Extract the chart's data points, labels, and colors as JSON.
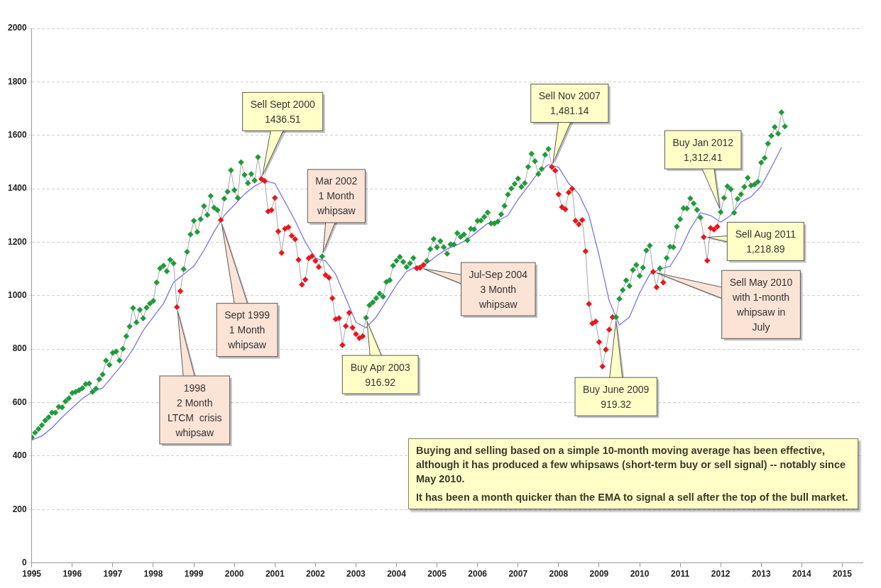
{
  "chart_data": {
    "type": "line",
    "xlim": [
      "1995",
      "2015-07"
    ],
    "xticks": [
      "1995",
      "1996",
      "1997",
      "1998",
      "1999",
      "2000",
      "2001",
      "2002",
      "2003",
      "2004",
      "2005",
      "2006",
      "2007",
      "2008",
      "2009",
      "2010",
      "2011",
      "2012",
      "2013",
      "2014",
      "2015"
    ],
    "ylim": [
      0,
      2000
    ],
    "yticks": [
      0,
      200,
      400,
      600,
      800,
      1000,
      1200,
      1400,
      1600,
      1800,
      2000
    ],
    "grid": "y",
    "legend": false,
    "x": [
      "1995-01",
      "1995-02",
      "1995-03",
      "1995-04",
      "1995-05",
      "1995-06",
      "1995-07",
      "1995-08",
      "1995-09",
      "1995-10",
      "1995-11",
      "1995-12",
      "1996-01",
      "1996-02",
      "1996-03",
      "1996-04",
      "1996-05",
      "1996-06",
      "1996-07",
      "1996-08",
      "1996-09",
      "1996-10",
      "1996-11",
      "1996-12",
      "1997-01",
      "1997-02",
      "1997-03",
      "1997-04",
      "1997-05",
      "1997-06",
      "1997-07",
      "1997-08",
      "1997-09",
      "1997-10",
      "1997-11",
      "1997-12",
      "1998-01",
      "1998-02",
      "1998-03",
      "1998-04",
      "1998-05",
      "1998-06",
      "1998-07",
      "1998-08",
      "1998-09",
      "1998-10",
      "1998-11",
      "1998-12",
      "1999-01",
      "1999-02",
      "1999-03",
      "1999-04",
      "1999-05",
      "1999-06",
      "1999-07",
      "1999-08",
      "1999-09",
      "1999-10",
      "1999-11",
      "1999-12",
      "2000-01",
      "2000-02",
      "2000-03",
      "2000-04",
      "2000-05",
      "2000-06",
      "2000-07",
      "2000-08",
      "2000-09",
      "2000-10",
      "2000-11",
      "2000-12",
      "2001-01",
      "2001-02",
      "2001-03",
      "2001-04",
      "2001-05",
      "2001-06",
      "2001-07",
      "2001-08",
      "2001-09",
      "2001-10",
      "2001-11",
      "2001-12",
      "2002-01",
      "2002-02",
      "2002-03",
      "2002-04",
      "2002-05",
      "2002-06",
      "2002-07",
      "2002-08",
      "2002-09",
      "2002-10",
      "2002-11",
      "2002-12",
      "2003-01",
      "2003-02",
      "2003-03",
      "2003-04",
      "2003-05",
      "2003-06",
      "2003-07",
      "2003-08",
      "2003-09",
      "2003-10",
      "2003-11",
      "2003-12",
      "2004-01",
      "2004-02",
      "2004-03",
      "2004-04",
      "2004-05",
      "2004-06",
      "2004-07",
      "2004-08",
      "2004-09",
      "2004-10",
      "2004-11",
      "2004-12",
      "2005-01",
      "2005-02",
      "2005-03",
      "2005-04",
      "2005-05",
      "2005-06",
      "2005-07",
      "2005-08",
      "2005-09",
      "2005-10",
      "2005-11",
      "2005-12",
      "2006-01",
      "2006-02",
      "2006-03",
      "2006-04",
      "2006-05",
      "2006-06",
      "2006-07",
      "2006-08",
      "2006-09",
      "2006-10",
      "2006-11",
      "2006-12",
      "2007-01",
      "2007-02",
      "2007-03",
      "2007-04",
      "2007-05",
      "2007-06",
      "2007-07",
      "2007-08",
      "2007-09",
      "2007-10",
      "2007-11",
      "2007-12",
      "2008-01",
      "2008-02",
      "2008-03",
      "2008-04",
      "2008-05",
      "2008-06",
      "2008-07",
      "2008-08",
      "2008-09",
      "2008-10",
      "2008-11",
      "2008-12",
      "2009-01",
      "2009-02",
      "2009-03",
      "2009-04",
      "2009-05",
      "2009-06",
      "2009-07",
      "2009-08",
      "2009-09",
      "2009-10",
      "2009-11",
      "2009-12",
      "2010-01",
      "2010-02",
      "2010-03",
      "2010-04",
      "2010-05",
      "2010-06",
      "2010-07",
      "2010-08",
      "2010-09",
      "2010-10",
      "2010-11",
      "2010-12",
      "2011-01",
      "2011-02",
      "2011-03",
      "2011-04",
      "2011-05",
      "2011-06",
      "2011-07",
      "2011-08",
      "2011-09",
      "2011-10",
      "2011-11",
      "2011-12",
      "2012-01",
      "2012-02",
      "2012-03",
      "2012-04",
      "2012-05",
      "2012-06",
      "2012-07",
      "2012-08",
      "2012-09",
      "2012-10",
      "2012-11",
      "2012-12",
      "2013-01",
      "2013-02",
      "2013-03",
      "2013-04",
      "2013-05",
      "2013-06",
      "2013-07",
      "2013-08"
    ],
    "series": [
      {
        "color": "#a6a6a6",
        "marker": "diamond",
        "values": [
          470,
          487,
          501,
          515,
          533,
          545,
          562,
          562,
          584,
          582,
          605,
          616,
          636,
          640,
          646,
          654,
          669,
          671,
          640,
          652,
          687,
          705,
          757,
          741,
          786,
          791,
          757,
          801,
          848,
          885,
          954,
          900,
          947,
          915,
          955,
          970,
          980,
          1049,
          1102,
          1112,
          1091,
          1134,
          1121,
          957,
          1017,
          1099,
          1164,
          1229,
          1280,
          1238,
          1286,
          1335,
          1302,
          1373,
          1329,
          1320,
          1283,
          1363,
          1389,
          1469,
          1395,
          1366,
          1499,
          1452,
          1421,
          1455,
          1431,
          1518,
          1436.51,
          1429,
          1315,
          1320,
          1366,
          1240,
          1160,
          1250,
          1256,
          1224,
          1211,
          1134,
          1041,
          1060,
          1140,
          1148,
          1130,
          1107,
          1147,
          1077,
          1067,
          990,
          912,
          916,
          815,
          886,
          936,
          880,
          856,
          841,
          848,
          916.92,
          964,
          975,
          990,
          1008,
          996,
          1051,
          1058,
          1112,
          1131,
          1145,
          1126,
          1107,
          1121,
          1141,
          1102,
          1104,
          1115,
          1130,
          1174,
          1212,
          1181,
          1204,
          1181,
          1157,
          1192,
          1191,
          1234,
          1220,
          1229,
          1207,
          1250,
          1248,
          1280,
          1281,
          1295,
          1311,
          1270,
          1270,
          1277,
          1304,
          1336,
          1378,
          1401,
          1418,
          1438,
          1407,
          1421,
          1482,
          1531,
          1503,
          1455,
          1474,
          1527,
          1549,
          1481.14,
          1468,
          1379,
          1331,
          1323,
          1386,
          1400,
          1280,
          1267,
          1283,
          1166,
          969,
          896,
          903,
          826,
          735,
          798,
          873,
          919,
          919.32,
          988,
          1021,
          1057,
          1036,
          1096,
          1115,
          1074,
          1105,
          1169,
          1187,
          1089,
          1031,
          1102,
          1049,
          1141,
          1183,
          1181,
          1258,
          1286,
          1327,
          1326,
          1364,
          1345,
          1321,
          1292,
          1218.89,
          1131,
          1253,
          1247,
          1258,
          1312.41,
          1366,
          1409,
          1398,
          1310,
          1362,
          1379,
          1407,
          1441,
          1412,
          1416,
          1426,
          1498,
          1515,
          1569,
          1598,
          1631,
          1606,
          1686,
          1633
        ],
        "colors": [
          "#1f9a3a",
          "#1f9a3a",
          "#1f9a3a",
          "#1f9a3a",
          "#1f9a3a",
          "#1f9a3a",
          "#1f9a3a",
          "#1f9a3a",
          "#1f9a3a",
          "#1f9a3a",
          "#1f9a3a",
          "#1f9a3a",
          "#1f9a3a",
          "#1f9a3a",
          "#1f9a3a",
          "#1f9a3a",
          "#1f9a3a",
          "#1f9a3a",
          "#1f9a3a",
          "#1f9a3a",
          "#1f9a3a",
          "#1f9a3a",
          "#1f9a3a",
          "#1f9a3a",
          "#1f9a3a",
          "#1f9a3a",
          "#1f9a3a",
          "#1f9a3a",
          "#1f9a3a",
          "#1f9a3a",
          "#1f9a3a",
          "#1f9a3a",
          "#1f9a3a",
          "#1f9a3a",
          "#1f9a3a",
          "#1f9a3a",
          "#1f9a3a",
          "#1f9a3a",
          "#1f9a3a",
          "#1f9a3a",
          "#1f9a3a",
          "#1f9a3a",
          "#1f9a3a",
          "#e8161b",
          "#e8161b",
          "#1f9a3a",
          "#1f9a3a",
          "#1f9a3a",
          "#1f9a3a",
          "#1f9a3a",
          "#1f9a3a",
          "#1f9a3a",
          "#1f9a3a",
          "#1f9a3a",
          "#1f9a3a",
          "#1f9a3a",
          "#e8161b",
          "#1f9a3a",
          "#1f9a3a",
          "#1f9a3a",
          "#1f9a3a",
          "#1f9a3a",
          "#1f9a3a",
          "#1f9a3a",
          "#1f9a3a",
          "#1f9a3a",
          "#1f9a3a",
          "#1f9a3a",
          "#e8161b",
          "#e8161b",
          "#e8161b",
          "#e8161b",
          "#e8161b",
          "#e8161b",
          "#e8161b",
          "#e8161b",
          "#e8161b",
          "#e8161b",
          "#e8161b",
          "#e8161b",
          "#e8161b",
          "#e8161b",
          "#e8161b",
          "#e8161b",
          "#e8161b",
          "#e8161b",
          "#1f9a3a",
          "#e8161b",
          "#e8161b",
          "#e8161b",
          "#e8161b",
          "#e8161b",
          "#e8161b",
          "#e8161b",
          "#e8161b",
          "#e8161b",
          "#e8161b",
          "#e8161b",
          "#e8161b",
          "#1f9a3a",
          "#1f9a3a",
          "#1f9a3a",
          "#1f9a3a",
          "#1f9a3a",
          "#1f9a3a",
          "#1f9a3a",
          "#1f9a3a",
          "#1f9a3a",
          "#1f9a3a",
          "#1f9a3a",
          "#1f9a3a",
          "#1f9a3a",
          "#1f9a3a",
          "#1f9a3a",
          "#e8161b",
          "#e8161b",
          "#e8161b",
          "#1f9a3a",
          "#1f9a3a",
          "#1f9a3a",
          "#1f9a3a",
          "#1f9a3a",
          "#1f9a3a",
          "#1f9a3a",
          "#1f9a3a",
          "#1f9a3a",
          "#1f9a3a",
          "#1f9a3a",
          "#1f9a3a",
          "#1f9a3a",
          "#1f9a3a",
          "#1f9a3a",
          "#1f9a3a",
          "#1f9a3a",
          "#1f9a3a",
          "#1f9a3a",
          "#1f9a3a",
          "#1f9a3a",
          "#1f9a3a",
          "#1f9a3a",
          "#1f9a3a",
          "#1f9a3a",
          "#1f9a3a",
          "#1f9a3a",
          "#1f9a3a",
          "#1f9a3a",
          "#1f9a3a",
          "#1f9a3a",
          "#1f9a3a",
          "#1f9a3a",
          "#1f9a3a",
          "#1f9a3a",
          "#1f9a3a",
          "#1f9a3a",
          "#e8161b",
          "#e8161b",
          "#e8161b",
          "#e8161b",
          "#e8161b",
          "#e8161b",
          "#e8161b",
          "#e8161b",
          "#e8161b",
          "#e8161b",
          "#e8161b",
          "#e8161b",
          "#e8161b",
          "#e8161b",
          "#e8161b",
          "#e8161b",
          "#e8161b",
          "#e8161b",
          "#e8161b",
          "#1f9a3a",
          "#1f9a3a",
          "#1f9a3a",
          "#1f9a3a",
          "#1f9a3a",
          "#1f9a3a",
          "#1f9a3a",
          "#1f9a3a",
          "#1f9a3a",
          "#1f9a3a",
          "#1f9a3a",
          "#e8161b",
          "#e8161b",
          "#1f9a3a",
          "#e8161b",
          "#1f9a3a",
          "#1f9a3a",
          "#1f9a3a",
          "#1f9a3a",
          "#1f9a3a",
          "#1f9a3a",
          "#1f9a3a",
          "#1f9a3a",
          "#1f9a3a",
          "#1f9a3a",
          "#1f9a3a",
          "#e8161b",
          "#e8161b",
          "#e8161b",
          "#e8161b",
          "#e8161b",
          "#1f9a3a",
          "#1f9a3a",
          "#1f9a3a",
          "#1f9a3a",
          "#1f9a3a",
          "#1f9a3a",
          "#1f9a3a",
          "#1f9a3a",
          "#1f9a3a",
          "#1f9a3a",
          "#1f9a3a",
          "#1f9a3a",
          "#1f9a3a",
          "#1f9a3a",
          "#1f9a3a",
          "#1f9a3a",
          "#1f9a3a",
          "#1f9a3a",
          "#1f9a3a",
          "#1f9a3a"
        ]
      },
      {
        "color": "#7b72f0",
        "marker": "none",
        "x": [
          "1995-01",
          "1995-04",
          "1995-07",
          "1995-10",
          "1996-01",
          "1996-04",
          "1996-07",
          "1996-10",
          "1997-01",
          "1997-04",
          "1997-07",
          "1997-10",
          "1998-01",
          "1998-04",
          "1998-07",
          "1998-10",
          "1999-01",
          "1999-04",
          "1999-07",
          "1999-10",
          "2000-01",
          "2000-04",
          "2000-07",
          "2000-10",
          "2001-01",
          "2001-04",
          "2001-07",
          "2001-10",
          "2002-01",
          "2002-04",
          "2002-07",
          "2002-10",
          "2003-01",
          "2003-04",
          "2003-07",
          "2003-10",
          "2004-01",
          "2004-04",
          "2004-07",
          "2004-10",
          "2005-01",
          "2005-04",
          "2005-07",
          "2005-10",
          "2006-01",
          "2006-04",
          "2006-07",
          "2006-10",
          "2007-01",
          "2007-04",
          "2007-07",
          "2007-10",
          "2008-01",
          "2008-04",
          "2008-07",
          "2008-10",
          "2009-01",
          "2009-04",
          "2009-07",
          "2009-10",
          "2010-01",
          "2010-04",
          "2010-07",
          "2010-10",
          "2011-01",
          "2011-04",
          "2011-07",
          "2011-10",
          "2012-01",
          "2012-04",
          "2012-07",
          "2012-10",
          "2013-01",
          "2013-04",
          "2013-07"
        ],
        "values": [
          460,
          475,
          505,
          545,
          580,
          615,
          640,
          655,
          700,
          745,
          800,
          870,
          920,
          970,
          1050,
          1080,
          1110,
          1170,
          1240,
          1300,
          1340,
          1380,
          1410,
          1430,
          1420,
          1350,
          1280,
          1200,
          1140,
          1130,
          1080,
          990,
          900,
          880,
          920,
          980,
          1040,
          1090,
          1110,
          1120,
          1150,
          1175,
          1190,
          1210,
          1240,
          1270,
          1280,
          1300,
          1360,
          1410,
          1460,
          1490,
          1480,
          1420,
          1380,
          1300,
          1150,
          980,
          890,
          920,
          1010,
          1080,
          1100,
          1110,
          1170,
          1250,
          1310,
          1300,
          1275,
          1300,
          1350,
          1370,
          1410,
          1480,
          1555
        ]
      }
    ],
    "annotations": [
      {
        "text": "1998\n2 Month\nLTCM  crisis\nwhipsaw",
        "x": "1998-08",
        "y": 957
      },
      {
        "text": "Sept 1999\n1 Month\nwhipsaw",
        "x": "1999-09",
        "y": 1283
      },
      {
        "text": "Sell Sept 2000\n1436.51",
        "x": "2000-09",
        "y": 1436.51
      },
      {
        "text": "Mar 2002\n1 Month\nwhipsaw",
        "x": "2002-03",
        "y": 1147
      },
      {
        "text": "Buy Apr 2003\n916.92",
        "x": "2003-04",
        "y": 916.92
      },
      {
        "text": "Jul-Sep 2004\n3 Month\nwhipsaw",
        "x": "2004-08",
        "y": 1104
      },
      {
        "text": "Sell Nov 2007\n1,481.14",
        "x": "2007-11",
        "y": 1481.14
      },
      {
        "text": "Buy June 2009\n919.32",
        "x": "2009-06",
        "y": 919.32
      },
      {
        "text": "Buy Jan 2012\n1,312.41",
        "x": "2012-01",
        "y": 1312.41
      },
      {
        "text": "Sell Aug 2011\n1,218.89",
        "x": "2011-08",
        "y": 1218.89
      },
      {
        "text": "Sell May 2010\nwith 1-month\nwhipsaw in\nJuly",
        "x": "2010-05",
        "y": 1089
      },
      "Buying and selling based on a simple 10-month moving average has been effective, although it has produced a few whipsaws (short-term buy or sell signal) -- notably since May 2010.\nIt has been a month quicker than the EMA to signal a sell after the top of the bull market."
    ]
  }
}
